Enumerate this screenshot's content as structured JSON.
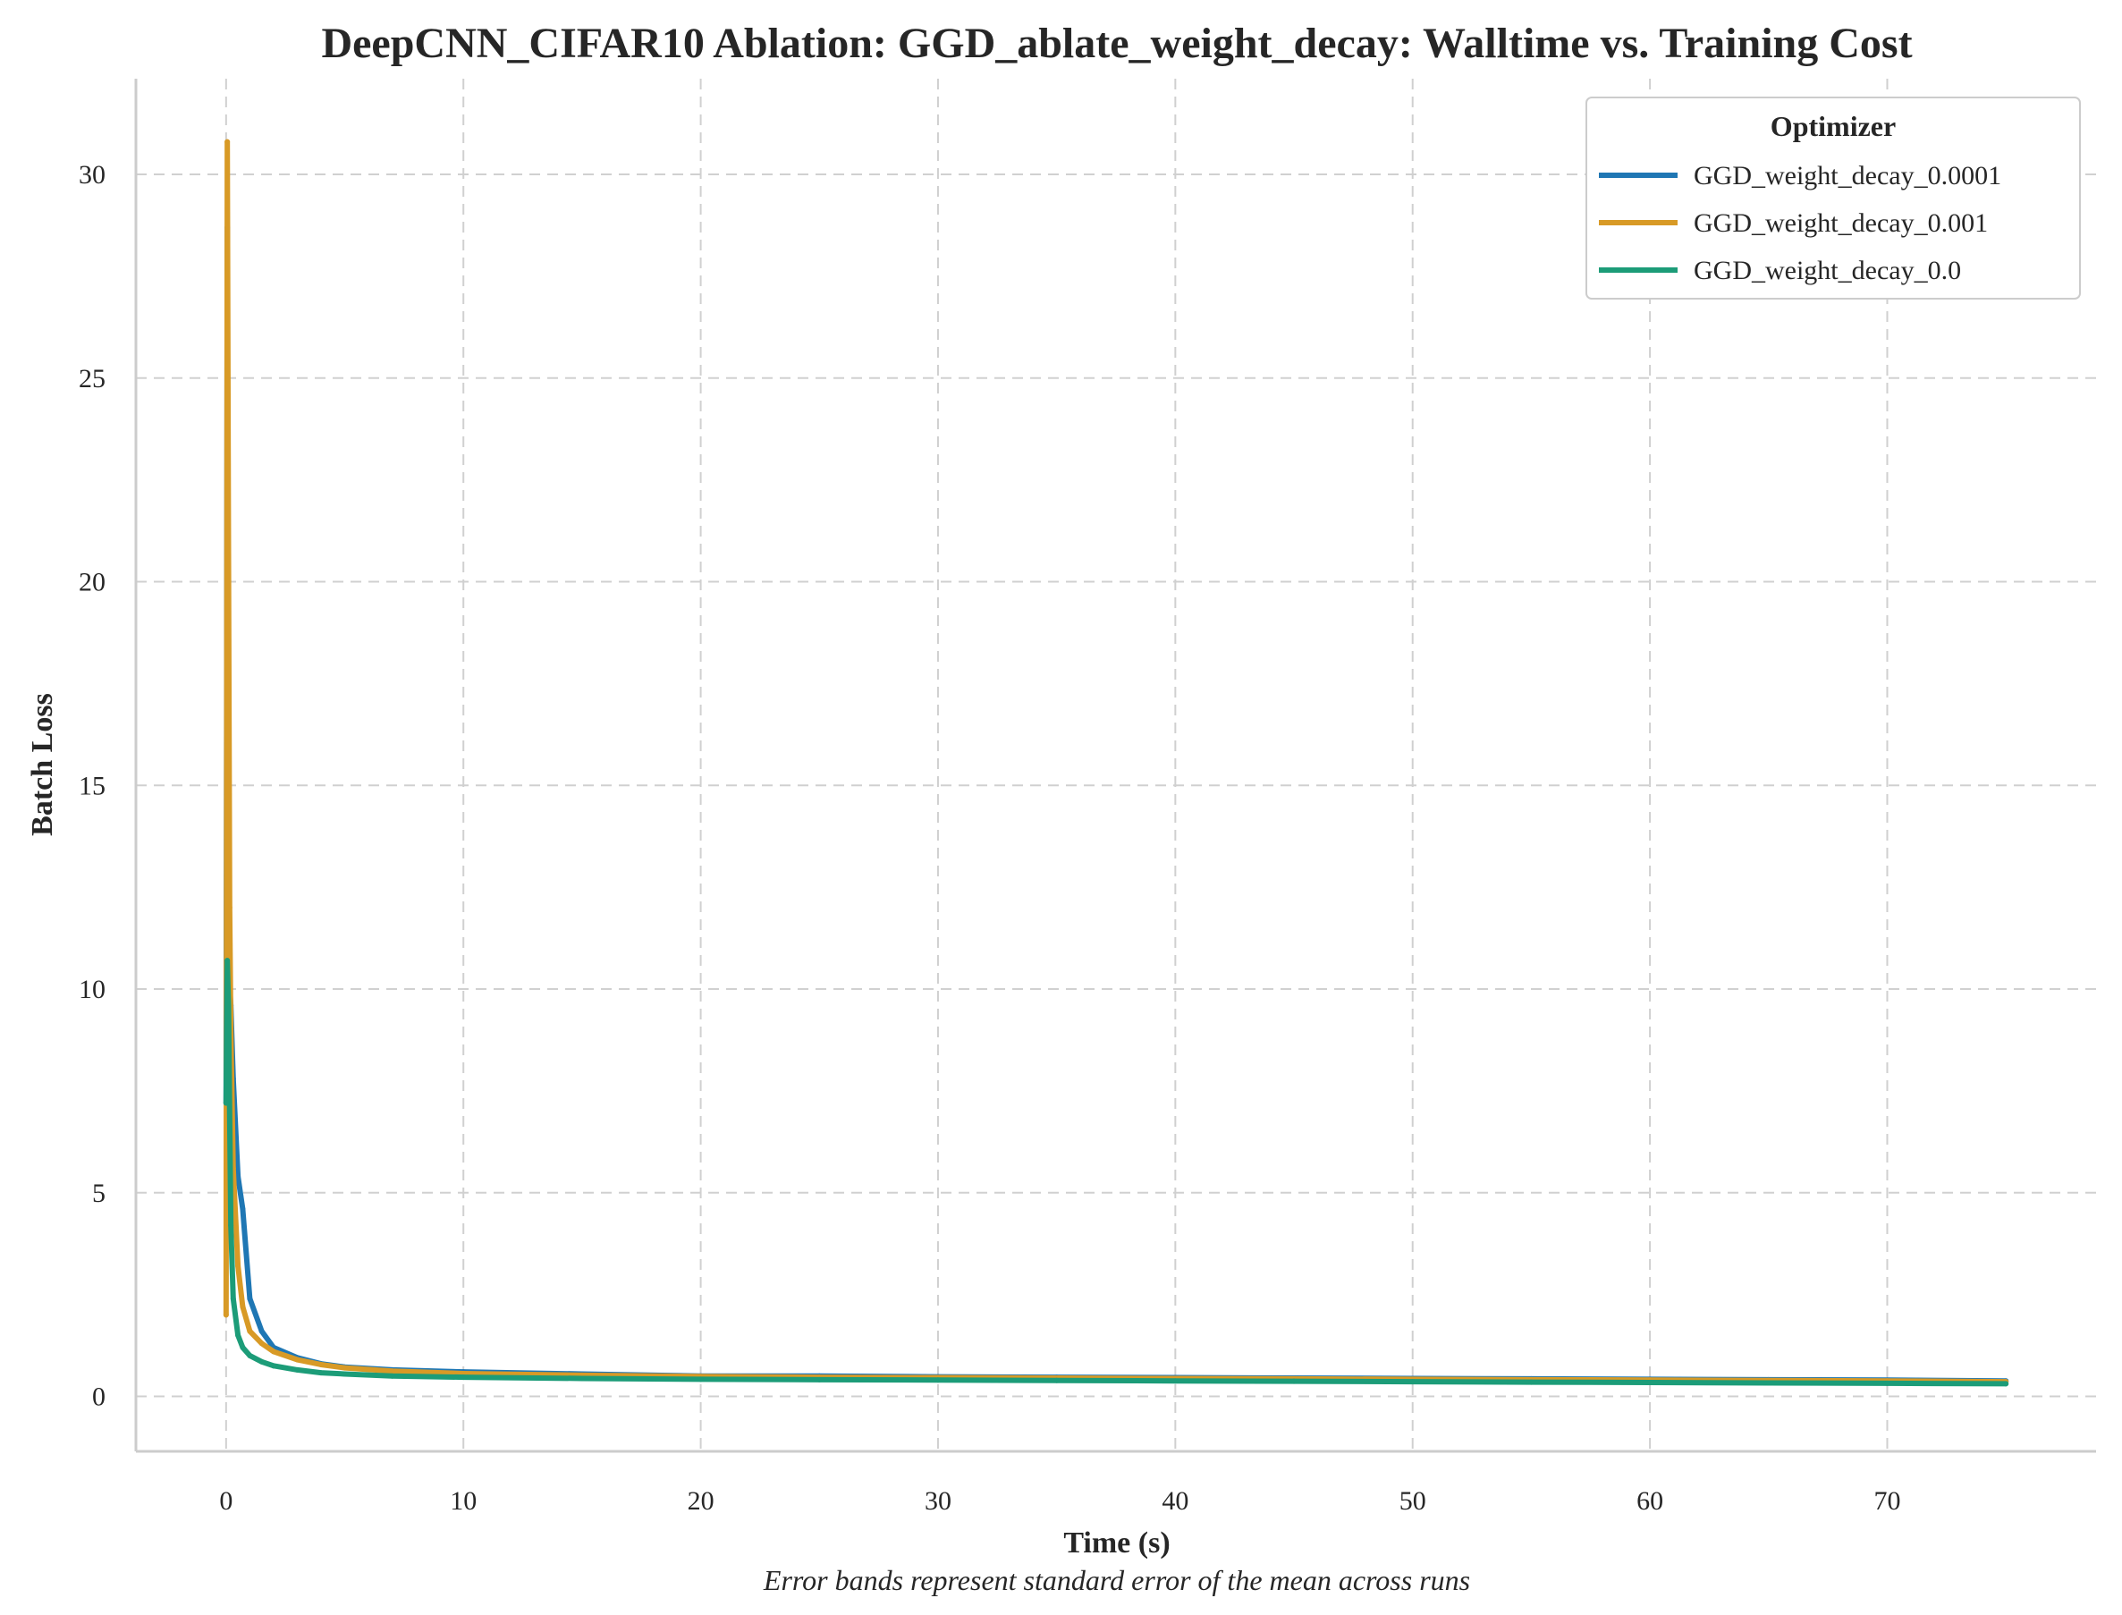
{
  "chart_data": {
    "type": "line",
    "title": "DeepCNN_CIFAR10 Ablation: GGD_ablate_weight_decay: Walltime vs. Training Cost",
    "xlabel": "Time (s)",
    "ylabel": "Batch Loss",
    "note": "Error bands represent standard error of the mean across runs",
    "xlim": [
      -3.8,
      78.8
    ],
    "ylim": [
      -1.35,
      32.35
    ],
    "xticks": [
      0,
      10,
      20,
      30,
      40,
      50,
      60,
      70
    ],
    "yticks": [
      0,
      5,
      10,
      15,
      20,
      25,
      30
    ],
    "grid": true,
    "legend": {
      "title": "Optimizer",
      "position": "top-right"
    },
    "series": [
      {
        "name": "GGD_weight_decay_0.0001",
        "color": "#1f77b4",
        "x": [
          0,
          0.05,
          0.1,
          0.2,
          0.3,
          0.5,
          0.7,
          1.0,
          1.5,
          2.0,
          3.0,
          4.0,
          5.0,
          7.0,
          10.0,
          15.0,
          20.0,
          25.0,
          30.0,
          35.0,
          40.0,
          45.0,
          50.0,
          55.0,
          60.0,
          65.0,
          70.0,
          75.0
        ],
        "y": [
          7.2,
          28.7,
          10.5,
          9.6,
          7.8,
          5.4,
          4.6,
          2.4,
          1.6,
          1.2,
          0.95,
          0.8,
          0.72,
          0.65,
          0.6,
          0.55,
          0.5,
          0.5,
          0.48,
          0.47,
          0.46,
          0.45,
          0.44,
          0.43,
          0.42,
          0.41,
          0.4,
          0.38
        ]
      },
      {
        "name": "GGD_weight_decay_0.001",
        "color": "#d89a26",
        "x": [
          0,
          0.05,
          0.1,
          0.15,
          0.2,
          0.3,
          0.5,
          0.7,
          1.0,
          1.5,
          2.0,
          3.0,
          4.0,
          5.0,
          7.0,
          10.0,
          15.0,
          20.0,
          25.0,
          30.0,
          35.0,
          40.0,
          45.0,
          50.0,
          55.0,
          60.0,
          65.0,
          70.0,
          75.0
        ],
        "y": [
          2.0,
          30.8,
          20.8,
          12.0,
          9.0,
          5.6,
          3.2,
          2.2,
          1.6,
          1.3,
          1.1,
          0.9,
          0.78,
          0.7,
          0.62,
          0.56,
          0.52,
          0.49,
          0.47,
          0.46,
          0.45,
          0.44,
          0.43,
          0.42,
          0.41,
          0.4,
          0.39,
          0.38,
          0.36
        ]
      },
      {
        "name": "GGD_weight_decay_0.0",
        "color": "#1c9c78",
        "x": [
          0,
          0.05,
          0.1,
          0.2,
          0.3,
          0.5,
          0.7,
          1.0,
          1.5,
          2.0,
          3.0,
          4.0,
          5.0,
          7.0,
          10.0,
          15.0,
          20.0,
          25.0,
          30.0,
          35.0,
          40.0,
          45.0,
          50.0,
          55.0,
          60.0,
          65.0,
          70.0,
          75.0
        ],
        "y": [
          7.2,
          10.7,
          9.6,
          4.2,
          2.4,
          1.5,
          1.2,
          1.0,
          0.85,
          0.75,
          0.65,
          0.58,
          0.55,
          0.5,
          0.47,
          0.44,
          0.42,
          0.41,
          0.4,
          0.39,
          0.38,
          0.37,
          0.36,
          0.35,
          0.34,
          0.33,
          0.32,
          0.31
        ]
      }
    ]
  }
}
